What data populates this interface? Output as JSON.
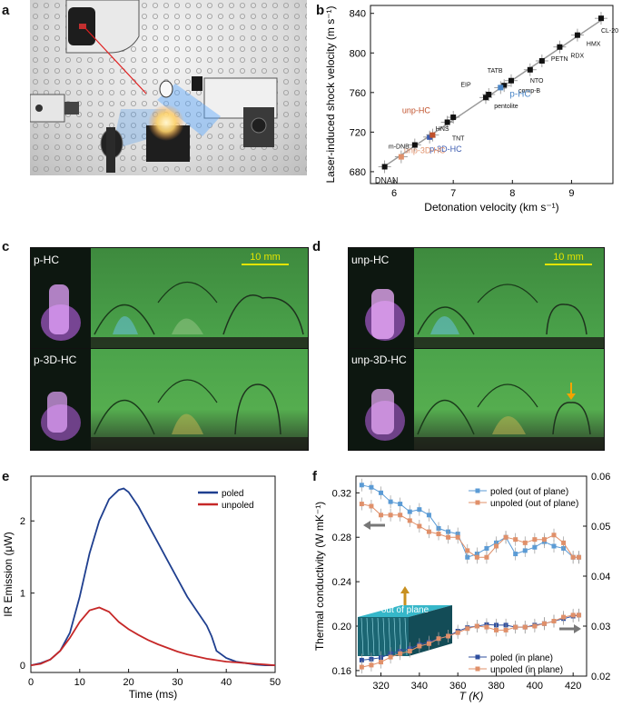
{
  "panels": {
    "a": "a",
    "b": "b",
    "c": "c",
    "d": "d",
    "e": "e",
    "f": "f"
  },
  "panel_c": {
    "row1_label": "p-HC",
    "row2_label": "p-3D-HC",
    "scale_label": "10 mm"
  },
  "panel_d": {
    "row1_label": "unp-HC",
    "row2_label": "unp-3D-HC",
    "scale_label": "10 mm",
    "arrow_color": "#f5a300"
  },
  "panel_f_inset_label": "out of plane",
  "chart_data": [
    {
      "id": "b",
      "type": "scatter",
      "xlabel": "Detonation velocity (km s⁻¹)",
      "ylabel": "Laser-induced shock velocity (m s⁻¹)",
      "xlim": [
        5.6,
        9.7
      ],
      "ylim": [
        668,
        848
      ],
      "xticks": [
        6,
        7,
        8,
        9
      ],
      "yticks": [
        680,
        720,
        760,
        800,
        840
      ],
      "fit_line": {
        "x": [
          5.8,
          9.55
        ],
        "y": [
          684,
          835
        ],
        "color": "#9a9a9a"
      },
      "points": [
        {
          "name": "DNAN",
          "x": 5.84,
          "y": 685,
          "color": "#111111"
        },
        {
          "name": "m-DNB",
          "x": 6.35,
          "y": 707,
          "color": "#111111"
        },
        {
          "name": "TNT",
          "x": 6.9,
          "y": 730,
          "color": "#111111"
        },
        {
          "name": "HNS",
          "x": 7.0,
          "y": 735,
          "color": "#111111"
        },
        {
          "name": "EIP",
          "x": 7.55,
          "y": 755,
          "color": "#111111"
        },
        {
          "name": "pentolite",
          "x": 7.6,
          "y": 758,
          "color": "#111111"
        },
        {
          "name": "TATB",
          "x": 7.86,
          "y": 767,
          "color": "#111111"
        },
        {
          "name": "comp-B",
          "x": 7.98,
          "y": 772,
          "color": "#111111"
        },
        {
          "name": "NTO",
          "x": 8.3,
          "y": 783,
          "color": "#111111"
        },
        {
          "name": "PETN",
          "x": 8.5,
          "y": 792,
          "color": "#111111"
        },
        {
          "name": "RDX",
          "x": 8.8,
          "y": 806,
          "color": "#111111"
        },
        {
          "name": "HMX",
          "x": 9.1,
          "y": 818,
          "color": "#111111"
        },
        {
          "name": "CL-20",
          "x": 9.5,
          "y": 835,
          "color": "#111111"
        },
        {
          "name": "unp-3D-HC",
          "x": 6.12,
          "y": 695,
          "color": "#e0906a"
        },
        {
          "name": "p-3D-HC",
          "x": 6.6,
          "y": 715,
          "color": "#3b5bb0"
        },
        {
          "name": "unp-HC",
          "x": 6.65,
          "y": 717,
          "color": "#c0502a"
        },
        {
          "name": "p-HC",
          "x": 7.8,
          "y": 765,
          "color": "#4a86c8"
        }
      ],
      "annotations": [
        {
          "text": "DNAN",
          "color": "#111111"
        },
        {
          "text": "m-DNB",
          "color": "#111111"
        },
        {
          "text": "TNT",
          "color": "#111111"
        },
        {
          "text": "HNS",
          "color": "#111111"
        },
        {
          "text": "EIP",
          "color": "#111111"
        },
        {
          "text": "pentolite",
          "color": "#111111"
        },
        {
          "text": "TATB",
          "color": "#111111"
        },
        {
          "text": "comp-B",
          "color": "#111111"
        },
        {
          "text": "NTO",
          "color": "#111111"
        },
        {
          "text": "PETN",
          "color": "#111111"
        },
        {
          "text": "RDX",
          "color": "#111111"
        },
        {
          "text": "HMX",
          "color": "#111111"
        },
        {
          "text": "CL-20",
          "color": "#111111"
        },
        {
          "text": "unp-HC",
          "color": "#c0502a"
        },
        {
          "text": "p-3D-HC",
          "color": "#3b5bb0"
        },
        {
          "text": "p-HC",
          "color": "#4a86c8"
        },
        {
          "text": "unp-3D-HC",
          "color": "#e0906a"
        }
      ]
    },
    {
      "id": "e",
      "type": "line",
      "xlabel": "Time (ms)",
      "ylabel": "IR Emission (μW)",
      "xlim": [
        0,
        50
      ],
      "ylim": [
        -0.1,
        2.62
      ],
      "xticks": [
        0,
        10,
        20,
        30,
        40,
        50
      ],
      "yticks": [
        0,
        1,
        2
      ],
      "legend_position": "top-right",
      "x": [
        0,
        2,
        4,
        6,
        8,
        10,
        12,
        14,
        16,
        18,
        19,
        20,
        22,
        24,
        26,
        28,
        30,
        32,
        34,
        36,
        37,
        38,
        40,
        42,
        44,
        46,
        48,
        50
      ],
      "series": [
        {
          "name": "poled",
          "color": "#1f3f8f",
          "values": [
            0,
            0.03,
            0.08,
            0.2,
            0.45,
            0.95,
            1.55,
            2.0,
            2.3,
            2.43,
            2.45,
            2.4,
            2.2,
            1.95,
            1.7,
            1.45,
            1.2,
            0.95,
            0.75,
            0.55,
            0.4,
            0.2,
            0.1,
            0.05,
            0.03,
            0.01,
            0.0,
            0.0
          ]
        },
        {
          "name": "unpoled",
          "color": "#c62828",
          "values": [
            0,
            0.02,
            0.08,
            0.2,
            0.38,
            0.6,
            0.76,
            0.8,
            0.74,
            0.6,
            0.55,
            0.5,
            0.42,
            0.35,
            0.29,
            0.24,
            0.19,
            0.15,
            0.12,
            0.09,
            0.08,
            0.07,
            0.05,
            0.04,
            0.03,
            0.02,
            0.01,
            0.0
          ]
        }
      ]
    },
    {
      "id": "f",
      "type": "line",
      "xlabel": "T (K)",
      "ylabel": "Thermal conductivity (W mK⁻¹)",
      "xlim": [
        307,
        427
      ],
      "ylim": [
        0.155,
        0.335
      ],
      "y2lim": [
        0.02,
        0.06
      ],
      "xticks": [
        320,
        340,
        360,
        380,
        400,
        420
      ],
      "yticks": [
        0.16,
        0.2,
        0.24,
        0.28,
        0.32
      ],
      "y2ticks": [
        0.02,
        0.03,
        0.04,
        0.05,
        0.06
      ],
      "x": [
        310,
        315,
        320,
        325,
        330,
        335,
        340,
        345,
        350,
        355,
        360,
        365,
        370,
        375,
        380,
        385,
        390,
        395,
        400,
        405,
        410,
        415,
        420,
        423
      ],
      "series": [
        {
          "name": "poled (out of plane)",
          "axis": "left",
          "color": "#5b9bd5",
          "values": [
            0.327,
            0.325,
            0.32,
            0.312,
            0.31,
            0.303,
            0.305,
            0.3,
            0.288,
            0.285,
            0.283,
            0.262,
            0.265,
            0.27,
            0.275,
            0.28,
            0.265,
            0.268,
            0.271,
            0.276,
            0.272,
            0.27,
            0.262,
            0.262
          ]
        },
        {
          "name": "unpoled (out of plane)",
          "axis": "left",
          "color": "#e0906a",
          "values": [
            0.31,
            0.308,
            0.3,
            0.3,
            0.3,
            0.295,
            0.29,
            0.285,
            0.283,
            0.28,
            0.28,
            0.268,
            0.262,
            0.262,
            0.272,
            0.28,
            0.278,
            0.275,
            0.278,
            0.278,
            0.282,
            0.275,
            0.262,
            0.262
          ]
        },
        {
          "name": "poled (in plane)",
          "axis": "right",
          "color": "#2f4f9f",
          "values": [
            0.0232,
            0.0234,
            0.0237,
            0.0245,
            0.025,
            0.0255,
            0.0263,
            0.0268,
            0.0275,
            0.028,
            0.029,
            0.0297,
            0.03,
            0.0303,
            0.0302,
            0.0302,
            0.0298,
            0.0298,
            0.0302,
            0.0305,
            0.031,
            0.0315,
            0.032,
            0.0322
          ]
        },
        {
          "name": "unpoled (in plane)",
          "axis": "right",
          "color": "#e0906a",
          "values": [
            0.0218,
            0.0222,
            0.0228,
            0.0238,
            0.0245,
            0.025,
            0.026,
            0.0265,
            0.0275,
            0.028,
            0.0287,
            0.0295,
            0.03,
            0.0298,
            0.0292,
            0.0292,
            0.0298,
            0.0298,
            0.03,
            0.0305,
            0.031,
            0.0318,
            0.0322,
            0.0322
          ]
        }
      ]
    }
  ]
}
